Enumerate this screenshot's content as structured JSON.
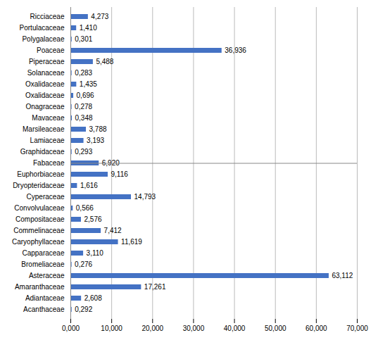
{
  "chart_data": {
    "type": "bar",
    "orientation": "horizontal",
    "categories": [
      "Acanthaceae",
      "Adiantaceae",
      "Amaranthaceae",
      "Asteraceae",
      "Bromeliaceae",
      "Capparaceae",
      "Caryophyllaceae",
      "Commelinaceae",
      "Compositaceae",
      "Convolvulaceae",
      "Cyperaceae",
      "Dryopteridaceae",
      "Euphorbiaceae",
      "Fabaceae",
      "Graphidaceae",
      "Lamiaceae",
      "Marsileaceae",
      "Mavaceae",
      "Onagraceae",
      "Oxalidaceae",
      "Oxalidaceae",
      "Solanaceae",
      "Piperaceae",
      "Poaceae",
      "Polygalaceae",
      "Portulacaceae",
      "Ricciaceae"
    ],
    "values": [
      0.292,
      2.608,
      17.261,
      63.112,
      0.276,
      3.11,
      11.619,
      7.412,
      2.576,
      0.566,
      14.793,
      1.616,
      9.116,
      6.92,
      0.293,
      3.193,
      3.788,
      0.348,
      0.278,
      0.696,
      1.435,
      0.283,
      5.488,
      36.936,
      0.301,
      1.41,
      4.273
    ],
    "value_labels": [
      "0,292",
      "2,608",
      "17,261",
      "63,112",
      "0,276",
      "3,110",
      "11,619",
      "7,412",
      "2,576",
      "0,566",
      "14,793",
      "1,616",
      "9,116",
      "6,920",
      "0,293",
      "3,193",
      "3,788",
      "0,348",
      "0,278",
      "0,696",
      "1,435",
      "0,283",
      "5,488",
      "36,936",
      "0,301",
      "1,410",
      "4,273"
    ],
    "data_labels": true,
    "color": "#4472C4",
    "xlim": [
      0,
      70
    ],
    "xticks": [
      {
        "value": 0,
        "label": "0,000"
      },
      {
        "value": 10,
        "label": "10,000"
      },
      {
        "value": 20,
        "label": "20,000"
      },
      {
        "value": 30,
        "label": "30,000"
      },
      {
        "value": 40,
        "label": "40,000"
      },
      {
        "value": 50,
        "label": "50,000"
      },
      {
        "value": 60,
        "label": "60,000"
      },
      {
        "value": 70,
        "label": "70,000"
      }
    ],
    "grid": true
  }
}
